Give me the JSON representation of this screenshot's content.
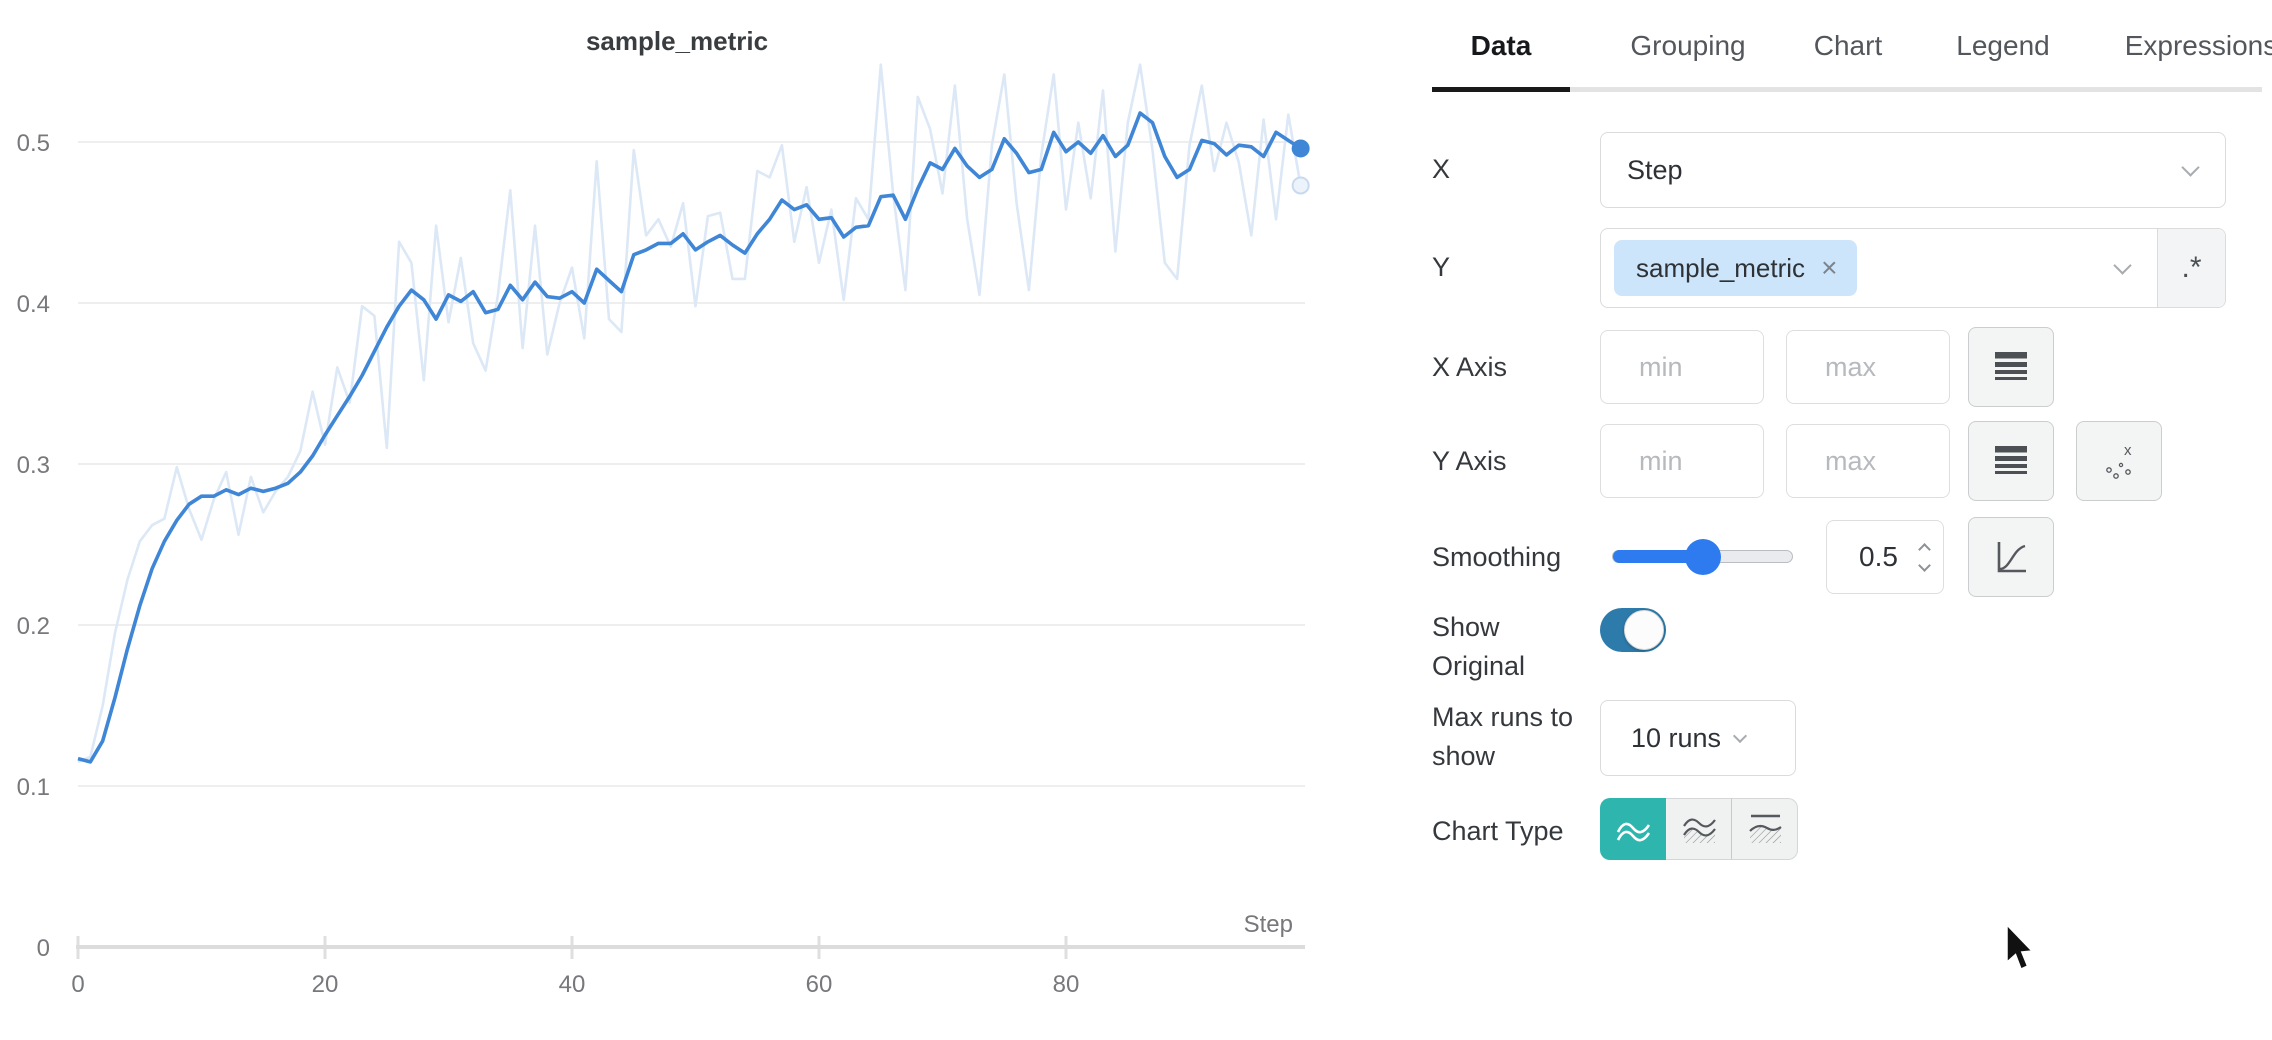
{
  "tabs": {
    "items": [
      {
        "label": "Data",
        "active": true
      },
      {
        "label": "Grouping",
        "active": false
      },
      {
        "label": "Chart",
        "active": false
      },
      {
        "label": "Legend",
        "active": false
      },
      {
        "label": "Expressions",
        "active": false
      }
    ]
  },
  "form": {
    "x": {
      "label": "X",
      "value": "Step"
    },
    "y": {
      "label": "Y",
      "chip": "sample_metric",
      "chip_remove": "×",
      "regex_button": ".*"
    },
    "x_axis": {
      "label": "X Axis",
      "min_placeholder": "min",
      "max_placeholder": "max"
    },
    "y_axis": {
      "label": "Y Axis",
      "min_placeholder": "min",
      "max_placeholder": "max"
    },
    "smoothing": {
      "label": "Smoothing",
      "value": "0.5",
      "percent": 50
    },
    "show_original": {
      "label": "Show Original",
      "on": true
    },
    "max_runs": {
      "label": "Max runs to show",
      "value": "10 runs"
    },
    "chart_type": {
      "label": "Chart Type",
      "selected_index": 0
    }
  },
  "colors": {
    "smoothed_line": "#3f86d6",
    "original_line": "#dce8f6",
    "original_dot_fill": "#edf3fb",
    "original_dot_stroke": "#c7daf0",
    "gridline": "#e9e9e9",
    "axis": "#dcdcdc",
    "tick_label": "#76787b",
    "title": "#3a3d40",
    "accent_teal": "#2eb6ae",
    "accent_slider": "#2e7bf0",
    "accent_toggle": "#2d7bab",
    "chip_bg": "#cde5fa"
  },
  "chart_data": {
    "type": "line",
    "title": "sample_metric",
    "xlabel": "Step",
    "ylabel": "",
    "x_start": 0,
    "x_step": 1,
    "xlim": [
      0,
      99
    ],
    "ylim": [
      0,
      0.55
    ],
    "x_tick_values": [
      0,
      20,
      40,
      60,
      80
    ],
    "x_tick_labels": [
      "0",
      "20",
      "40",
      "60",
      "80"
    ],
    "y_tick_values": [
      0,
      0.1,
      0.2,
      0.3,
      0.4,
      0.5
    ],
    "y_tick_labels": [
      "0",
      "0.1",
      "0.2",
      "0.3",
      "0.4",
      "0.5"
    ],
    "grid": true,
    "legend": false,
    "series": [
      {
        "name": "sample_metric (original)",
        "role": "original",
        "values": [
          0.115,
          0.118,
          0.15,
          0.195,
          0.228,
          0.252,
          0.262,
          0.266,
          0.298,
          0.272,
          0.253,
          0.278,
          0.295,
          0.256,
          0.292,
          0.27,
          0.283,
          0.292,
          0.308,
          0.345,
          0.312,
          0.36,
          0.338,
          0.398,
          0.392,
          0.31,
          0.438,
          0.425,
          0.352,
          0.448,
          0.388,
          0.428,
          0.375,
          0.358,
          0.405,
          0.47,
          0.372,
          0.448,
          0.368,
          0.4,
          0.422,
          0.378,
          0.488,
          0.39,
          0.382,
          0.495,
          0.442,
          0.452,
          0.435,
          0.462,
          0.398,
          0.454,
          0.456,
          0.415,
          0.415,
          0.482,
          0.478,
          0.498,
          0.438,
          0.472,
          0.425,
          0.458,
          0.402,
          0.465,
          0.452,
          0.548,
          0.468,
          0.408,
          0.528,
          0.508,
          0.468,
          0.535,
          0.452,
          0.405,
          0.498,
          0.542,
          0.462,
          0.408,
          0.492,
          0.542,
          0.458,
          0.512,
          0.465,
          0.532,
          0.432,
          0.512,
          0.548,
          0.495,
          0.425,
          0.415,
          0.498,
          0.535,
          0.482,
          0.512,
          0.487,
          0.442,
          0.514,
          0.452,
          0.517,
          0.473
        ]
      },
      {
        "name": "sample_metric (smoothed 0.5)",
        "role": "smoothed",
        "values": [
          0.117,
          0.115,
          0.128,
          0.155,
          0.185,
          0.212,
          0.235,
          0.252,
          0.265,
          0.275,
          0.28,
          0.28,
          0.284,
          0.281,
          0.285,
          0.283,
          0.285,
          0.288,
          0.295,
          0.305,
          0.318,
          0.33,
          0.342,
          0.355,
          0.37,
          0.385,
          0.398,
          0.408,
          0.402,
          0.39,
          0.405,
          0.401,
          0.407,
          0.394,
          0.396,
          0.411,
          0.402,
          0.413,
          0.404,
          0.403,
          0.407,
          0.4,
          0.421,
          0.414,
          0.407,
          0.43,
          0.433,
          0.437,
          0.437,
          0.443,
          0.433,
          0.438,
          0.442,
          0.436,
          0.431,
          0.443,
          0.452,
          0.464,
          0.458,
          0.461,
          0.452,
          0.453,
          0.441,
          0.447,
          0.448,
          0.466,
          0.467,
          0.452,
          0.471,
          0.487,
          0.483,
          0.496,
          0.485,
          0.478,
          0.483,
          0.502,
          0.493,
          0.481,
          0.483,
          0.506,
          0.494,
          0.5,
          0.493,
          0.504,
          0.491,
          0.498,
          0.518,
          0.512,
          0.491,
          0.478,
          0.483,
          0.501,
          0.499,
          0.492,
          0.498,
          0.497,
          0.491,
          0.506,
          0.501,
          0.496
        ]
      }
    ]
  }
}
